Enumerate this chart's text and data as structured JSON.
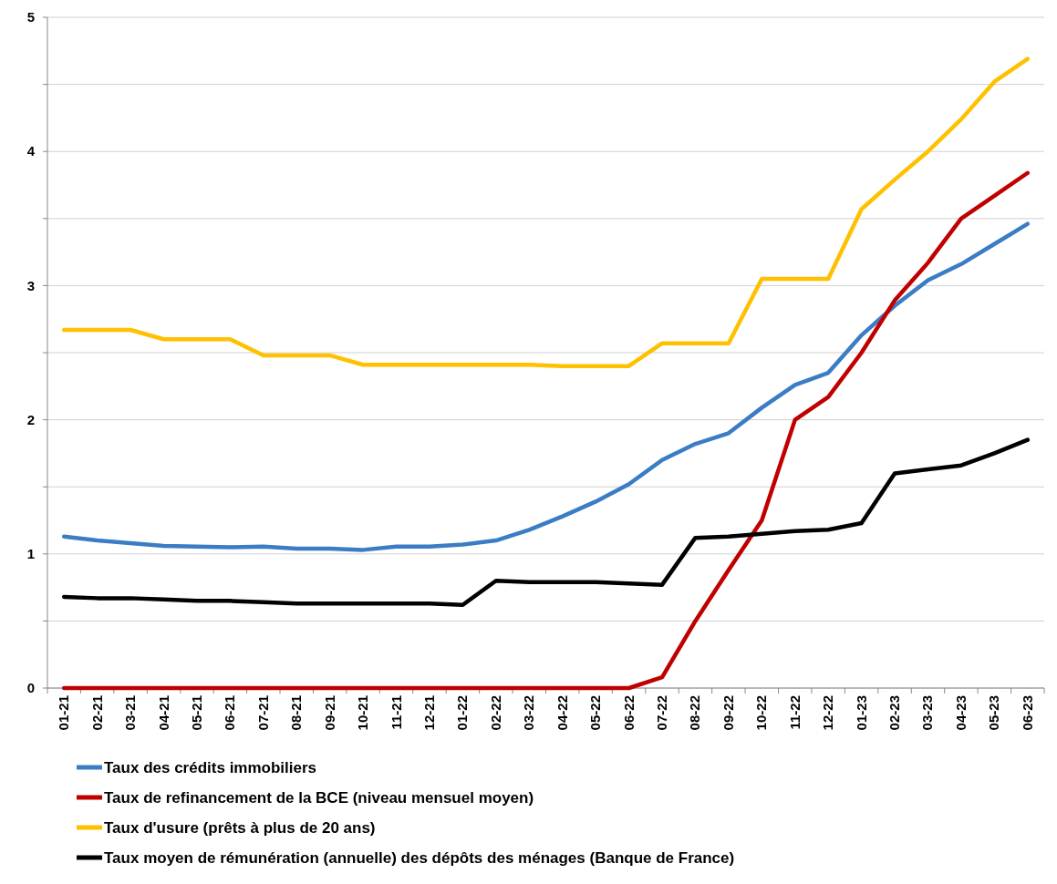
{
  "chart_data": {
    "type": "line",
    "categories": [
      "01-21",
      "02-21",
      "03-21",
      "04-21",
      "05-21",
      "06-21",
      "07-21",
      "08-21",
      "09-21",
      "10-21",
      "11-21",
      "12-21",
      "01-22",
      "02-22",
      "03-22",
      "04-22",
      "05-22",
      "06-22",
      "07-22",
      "08-22",
      "09-22",
      "10-22",
      "11-22",
      "12-22",
      "01-23",
      "02-23",
      "03-23",
      "04-23",
      "05-23",
      "06-23"
    ],
    "series": [
      {
        "name": "Taux des crédits immobiliers",
        "color": "#3a7dc4",
        "values": [
          1.13,
          1.1,
          1.08,
          1.06,
          1.055,
          1.05,
          1.055,
          1.04,
          1.04,
          1.03,
          1.055,
          1.055,
          1.07,
          1.1,
          1.18,
          1.28,
          1.39,
          1.52,
          1.7,
          1.82,
          1.9,
          2.09,
          2.26,
          2.35,
          2.63,
          2.85,
          3.04,
          3.16,
          3.31,
          3.46
        ]
      },
      {
        "name": "Taux de refinancement de la BCE (niveau mensuel moyen)",
        "color": "#c00000",
        "values": [
          0,
          0,
          0,
          0,
          0,
          0,
          0,
          0,
          0,
          0,
          0,
          0,
          0,
          0,
          0,
          0,
          0,
          0,
          0.08,
          0.5,
          0.88,
          1.25,
          2.0,
          2.17,
          2.5,
          2.89,
          3.17,
          3.5,
          3.67,
          3.84
        ]
      },
      {
        "name": "Taux d'usure (prêts à plus de 20 ans)",
        "color": "#ffc000",
        "values": [
          2.67,
          2.67,
          2.67,
          2.6,
          2.6,
          2.6,
          2.48,
          2.48,
          2.48,
          2.41,
          2.41,
          2.41,
          2.41,
          2.41,
          2.41,
          2.4,
          2.4,
          2.4,
          2.57,
          2.57,
          2.57,
          3.05,
          3.05,
          3.05,
          3.57,
          3.79,
          4.0,
          4.24,
          4.52,
          4.69
        ]
      },
      {
        "name": "Taux moyen de rémunération (annuelle) des dépôts des ménages (Banque de France)",
        "color": "#000000",
        "values": [
          0.68,
          0.67,
          0.67,
          0.66,
          0.65,
          0.65,
          0.64,
          0.63,
          0.63,
          0.63,
          0.63,
          0.63,
          0.62,
          0.8,
          0.79,
          0.79,
          0.79,
          0.78,
          0.77,
          1.12,
          1.13,
          1.15,
          1.17,
          1.18,
          1.23,
          1.6,
          1.63,
          1.66,
          1.75,
          1.85
        ]
      }
    ],
    "ylim": [
      0,
      5
    ],
    "yticks": [
      0,
      {
        "value": 0.5,
        "label": null
      },
      1,
      {
        "value": 1.5,
        "label": null
      },
      2,
      {
        "value": 2.5,
        "label": null
      },
      3,
      {
        "value": 3.5,
        "label": null
      },
      4,
      {
        "value": 4.5,
        "label": null
      },
      5
    ],
    "grid": "y",
    "legend": "bottom",
    "marker": "none",
    "line_style": "solid"
  }
}
